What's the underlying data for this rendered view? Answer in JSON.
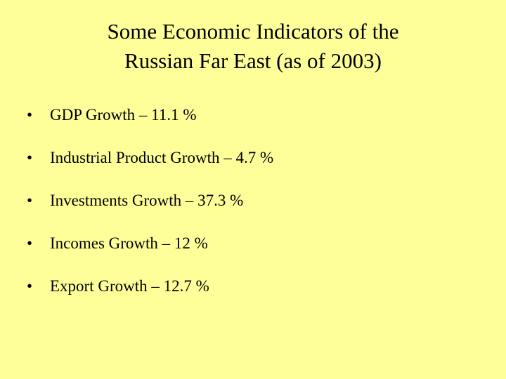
{
  "slide": {
    "title_line1": "Some Economic Indicators of the",
    "title_line2": "Russian Far East (as of 2003)",
    "bullet_symbol": "•",
    "bullets": [
      "GDP Growth – 11.1 %",
      "Industrial Product Growth – 4.7 %",
      "Investments Growth – 37.3 %",
      "Incomes Growth – 12 %",
      "Export Growth – 12.7 %"
    ],
    "background_color": "#ffff99"
  }
}
